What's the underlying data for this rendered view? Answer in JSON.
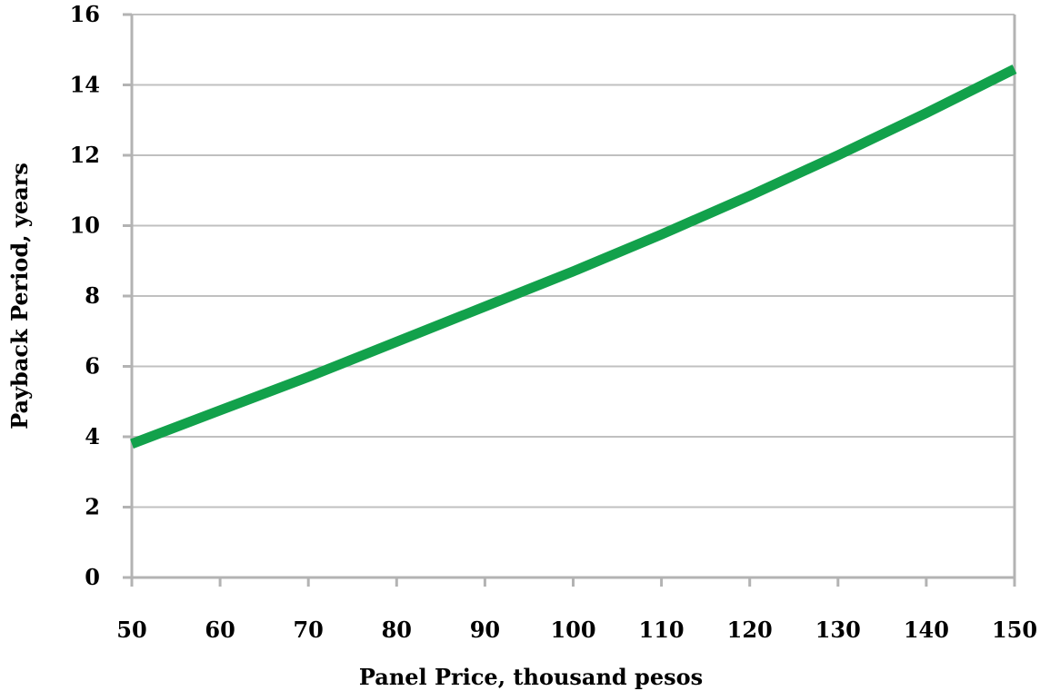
{
  "chart_data": {
    "type": "line",
    "title": "",
    "xlabel": "Panel Price, thousand pesos",
    "ylabel": "Payback Period, years",
    "xlim": [
      50,
      150
    ],
    "ylim": [
      0,
      16
    ],
    "xticks": [
      50,
      60,
      70,
      80,
      90,
      100,
      110,
      120,
      130,
      140,
      150
    ],
    "yticks": [
      0,
      2,
      4,
      6,
      8,
      10,
      12,
      14,
      16
    ],
    "grid": {
      "horizontal": true,
      "vertical": false
    },
    "legend": "none",
    "series": [
      {
        "color": "#12a14b",
        "x": [
          50,
          60,
          70,
          80,
          90,
          100,
          110,
          120,
          130,
          140,
          150
        ],
        "y": [
          3.8,
          4.75,
          5.7,
          6.7,
          7.7,
          8.7,
          9.75,
          10.85,
          12.0,
          13.2,
          14.45
        ]
      }
    ]
  },
  "colors": {
    "grid": "#c0c0c0",
    "axis": "#b3b3b3",
    "line": "#12a14b"
  }
}
